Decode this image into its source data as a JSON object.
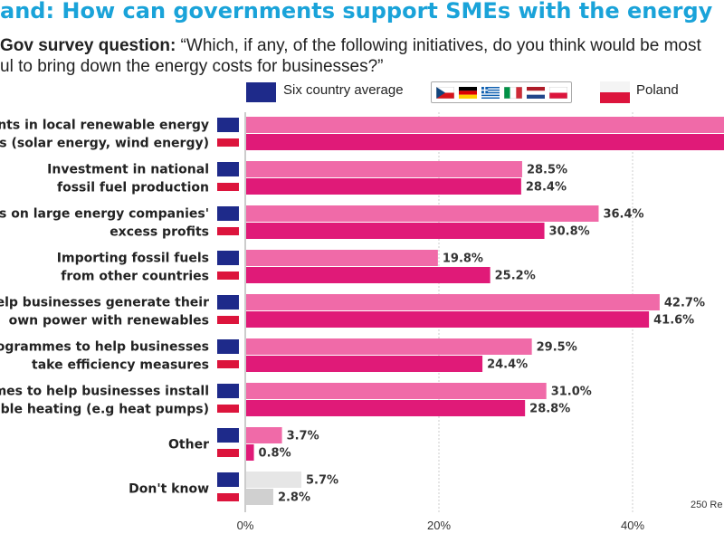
{
  "title": "and: How can governments support SMEs with the energy",
  "question": {
    "label": "Gov survey question:",
    "line1": " “Which, if any, of the following initiatives, do you think would be most",
    "line2": "ul to bring down the energy costs for businesses?”"
  },
  "legend": {
    "average_label": "Six country average",
    "poland_label": "Poland",
    "average_color": "#1e2a8a",
    "poland_flag": [
      "#ffffff",
      "#dc143c"
    ]
  },
  "source_note": "250 Re",
  "colors": {
    "average_bar": "#f06aa8",
    "poland_bar": "#e01a78",
    "dontknow_average": "#e6e6e6",
    "dontknow_poland": "#d0d0d0",
    "navy": "#1e2a8a",
    "red": "#dc143c"
  },
  "chart_data": {
    "type": "bar",
    "orientation": "horizontal",
    "categories": [
      [
        "ents in local renewable energy",
        "cts (solar energy, wind energy)"
      ],
      [
        "Investment in national",
        "fossil fuel production"
      ],
      [
        "tes on large energy companies'",
        "excess profits"
      ],
      [
        "Importing fossil fuels",
        "from other countries"
      ],
      [
        "help businesses generate their",
        "own power with renewables"
      ],
      [
        "rogrammes to help businesses",
        "take efficiency measures"
      ],
      [
        "mes to help businesses install",
        "wable heating (e.g heat pumps)"
      ],
      [
        "Other"
      ],
      [
        "Don't know"
      ]
    ],
    "series": [
      {
        "name": "Six country average",
        "values": [
          50,
          28.5,
          36.4,
          19.8,
          42.7,
          29.5,
          31.0,
          3.7,
          5.7
        ],
        "labels": [
          "",
          "28.5%",
          "36.4%",
          "19.8%",
          "42.7%",
          "29.5%",
          "31.0%",
          "3.7%",
          "5.7%"
        ]
      },
      {
        "name": "Poland",
        "values": [
          50,
          28.4,
          30.8,
          25.2,
          41.6,
          24.4,
          28.8,
          0.8,
          2.8
        ],
        "labels": [
          "",
          "28.4%",
          "30.8%",
          "25.2%",
          "41.6%",
          "24.4%",
          "28.8%",
          "0.8%",
          "2.8%"
        ]
      }
    ],
    "x_ticks": [
      "0%",
      "20%",
      "40%"
    ],
    "xlim": [
      0,
      50
    ],
    "grid": true,
    "legend": "top"
  }
}
